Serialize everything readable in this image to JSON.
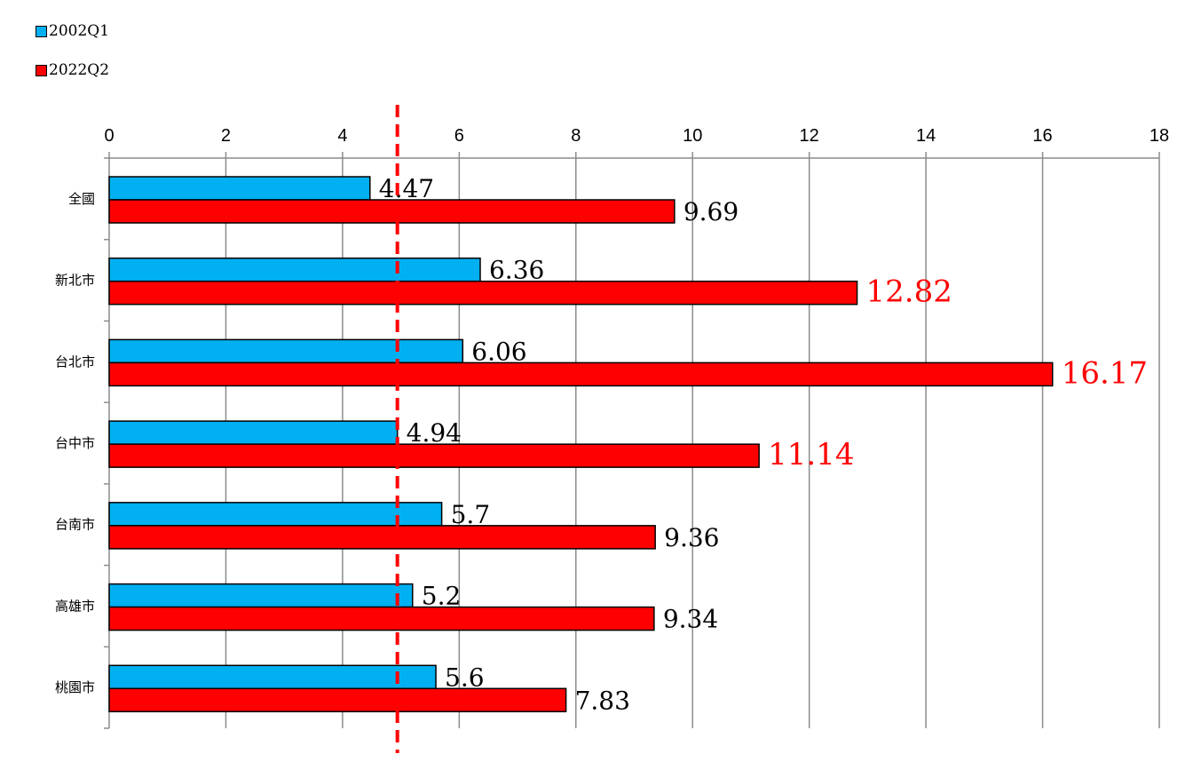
{
  "chart_data": {
    "type": "bar",
    "orientation": "horizontal",
    "title": "",
    "xlabel": "",
    "ylabel": "",
    "xlim": [
      0,
      18
    ],
    "ticks": [
      "0",
      "2",
      "4",
      "6",
      "8",
      "10",
      "12",
      "14",
      "16",
      "18"
    ],
    "categories": [
      "全國",
      "新北市",
      "台北市",
      "台中市",
      "台南市",
      "高雄市",
      "桃園市"
    ],
    "series": [
      {
        "name": "2002Q1",
        "color": "#00B0F0",
        "values": [
          4.47,
          6.36,
          6.06,
          4.94,
          5.7,
          5.2,
          5.6
        ],
        "labels": [
          "4.47",
          "6.36",
          "6.06",
          "4.94",
          "5.7",
          "5.2",
          "5.6"
        ]
      },
      {
        "name": "2022Q2",
        "color": "#FF0000",
        "values": [
          9.69,
          12.82,
          16.17,
          11.14,
          9.36,
          9.34,
          7.83
        ],
        "labels": [
          "9.69",
          "12.82",
          "16.17",
          "11.14",
          "9.36",
          "9.34",
          "7.83"
        ]
      }
    ],
    "highlight_labels": [
      "12.82",
      "16.17",
      "11.14"
    ],
    "reference_line": {
      "value": 4.94,
      "style": "dashed",
      "color": "#FF0000"
    },
    "grid": true,
    "legend_position": "top-left"
  }
}
